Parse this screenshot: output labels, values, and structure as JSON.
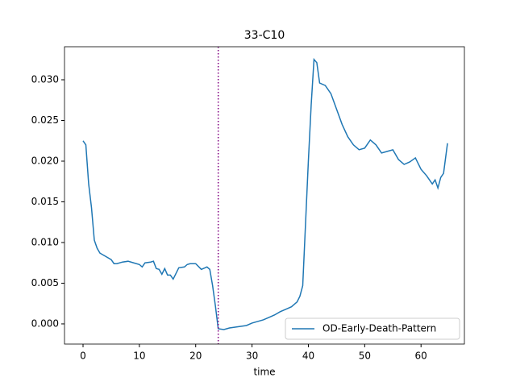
{
  "chart_data": {
    "type": "line",
    "title": "33-C10",
    "xlabel": "time",
    "x": [
      0,
      0.5,
      1,
      1.5,
      2,
      2.5,
      3,
      4,
      5,
      5.5,
      6,
      7,
      8,
      9,
      10,
      10.5,
      11,
      12,
      12.5,
      13,
      13.5,
      14,
      14.5,
      15,
      15.5,
      16,
      17,
      18,
      18.5,
      19,
      20,
      21,
      22,
      22.5,
      23,
      23.5,
      24,
      25,
      26,
      27,
      28,
      29,
      30,
      31,
      32,
      33,
      34,
      35,
      36,
      37,
      38,
      38.5,
      39,
      40,
      40.5,
      41,
      41.5,
      42,
      43,
      44,
      45,
      46,
      47,
      48,
      49,
      50,
      51,
      52,
      53,
      54,
      55,
      56,
      57,
      58,
      59,
      60,
      61,
      62,
      62.5,
      63,
      63.5,
      64,
      64.7
    ],
    "series": [
      {
        "name": "OD-Early-Death-Pattern",
        "color": "#1f77b4",
        "values": [
          0.0225,
          0.022,
          0.0172,
          0.0143,
          0.0103,
          0.0093,
          0.0087,
          0.0083,
          0.0079,
          0.0074,
          0.0074,
          0.0076,
          0.0077,
          0.0075,
          0.0073,
          0.007,
          0.0075,
          0.0076,
          0.0077,
          0.0068,
          0.0067,
          0.0061,
          0.0068,
          0.006,
          0.006,
          0.0055,
          0.0069,
          0.007,
          0.0073,
          0.0074,
          0.0074,
          0.0067,
          0.007,
          0.0067,
          0.0047,
          0.0022,
          -0.0006,
          -0.0007,
          -0.0005,
          -0.0004,
          -0.0003,
          -0.0002,
          0.0001,
          0.0003,
          0.0005,
          0.0008,
          0.0011,
          0.0015,
          0.0018,
          0.0021,
          0.0027,
          0.0034,
          0.0047,
          0.02,
          0.0269,
          0.0325,
          0.0321,
          0.0296,
          0.0293,
          0.0283,
          0.0264,
          0.0245,
          0.023,
          0.022,
          0.0214,
          0.0216,
          0.0226,
          0.022,
          0.021,
          0.0212,
          0.0214,
          0.0202,
          0.0196,
          0.0199,
          0.0204,
          0.019,
          0.0182,
          0.0172,
          0.0177,
          0.0167,
          0.018,
          0.0185,
          0.0222
        ]
      }
    ],
    "vline": {
      "x": 24,
      "color": "purple"
    },
    "xlim": [
      -3.29,
      67.7
    ],
    "ylim": [
      -0.00248,
      0.03406
    ],
    "xticks": [
      0,
      10,
      20,
      30,
      40,
      50,
      60
    ],
    "yticks": [
      {
        "value": 0,
        "label": "0.000"
      },
      0.005,
      {
        "value": 0.01,
        "label": "0.010"
      },
      0.015,
      {
        "value": 0.02,
        "label": "0.020"
      },
      0.025,
      {
        "value": 0.03,
        "label": "0.030"
      }
    ],
    "legend": "lower right"
  }
}
